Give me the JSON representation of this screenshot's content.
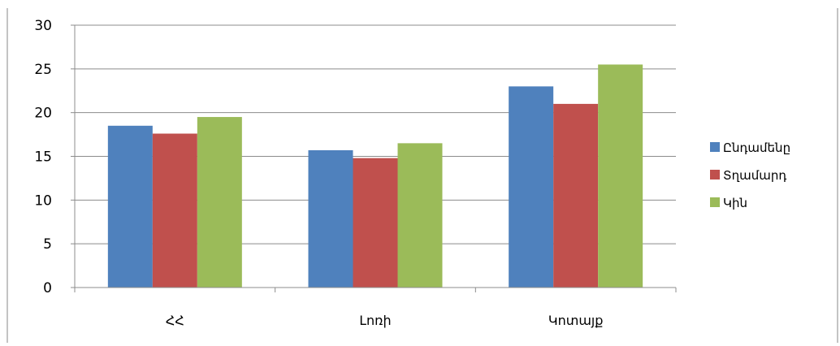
{
  "chart_data": {
    "type": "bar",
    "title": "",
    "xlabel": "",
    "ylabel": "",
    "categories": [
      "ՀՀ",
      "Լոռի",
      "Կոտայք"
    ],
    "series": [
      {
        "name": "Ընդամենը",
        "values": [
          18.5,
          15.7,
          23.0
        ],
        "color": "#4F81BD"
      },
      {
        "name": "Տղամարդ",
        "values": [
          17.6,
          14.8,
          21.0
        ],
        "color": "#C0504D"
      },
      {
        "name": "Կին",
        "values": [
          19.5,
          16.5,
          25.5
        ],
        "color": "#9BBB59"
      }
    ],
    "ylim": [
      0,
      30
    ],
    "yticks": [
      0,
      5,
      10,
      15,
      20,
      25,
      30
    ],
    "grid": true,
    "legend_position": "right"
  }
}
